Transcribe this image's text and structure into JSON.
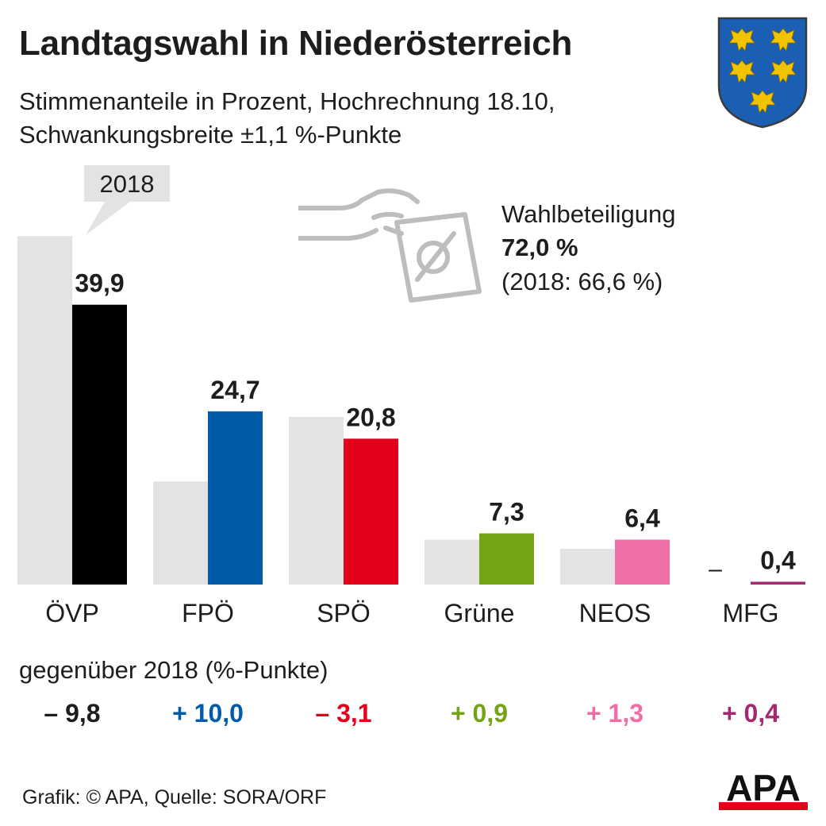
{
  "header": {
    "title": "Landtagswahl in Niederösterreich",
    "subtitle_line1": "Stimmenanteile in Prozent, Hochrechnung 18.10,",
    "subtitle_line2": "Schwankungsbreite ±1,1 %-Punkte"
  },
  "turnout": {
    "label": "Wahlbeteiligung",
    "value": "72,0 %",
    "previous": "(2018: 66,6 %)"
  },
  "chart_data": {
    "type": "bar",
    "title": "Landtagswahl in Niederösterreich",
    "categories": [
      "ÖVP",
      "FPÖ",
      "SPÖ",
      "Grüne",
      "NEOS",
      "MFG"
    ],
    "series": [
      {
        "name": "2018",
        "values": [
          49.7,
          14.7,
          23.9,
          6.4,
          5.1,
          null
        ],
        "color": "#e3e3e3"
      },
      {
        "values": [
          39.9,
          24.7,
          20.8,
          7.3,
          6.4,
          0.4
        ],
        "colors": [
          "#000000",
          "#005ca9",
          "#e2001a",
          "#74a414",
          "#ee6ea6",
          "#a5296f"
        ]
      }
    ],
    "value_labels": [
      "39,9",
      "24,7",
      "20,8",
      "7,3",
      "6,4",
      "0,4"
    ],
    "missing_previous_label": "–",
    "legend_callout": "2018",
    "ylim": [
      0,
      50
    ]
  },
  "changes": {
    "title": "gegenüber 2018 (%-Punkte)",
    "items": [
      {
        "text": "– 9,8",
        "color": "#1d1d1b"
      },
      {
        "text": "+ 10,0",
        "color": "#005ca9"
      },
      {
        "text": "– 3,1",
        "color": "#e2001a"
      },
      {
        "text": "+ 0,9",
        "color": "#74a414"
      },
      {
        "text": "+ 1,3",
        "color": "#ee6ea6"
      },
      {
        "text": "+ 0,4",
        "color": "#a5296f"
      }
    ]
  },
  "footer": {
    "source": "Grafik: © APA, Quelle: SORA/ORF",
    "logo_text": "APA"
  },
  "icons": {
    "crest": "lower-austria-coat-of-arms-icon",
    "ballot": "hand-with-ballot-icon"
  }
}
